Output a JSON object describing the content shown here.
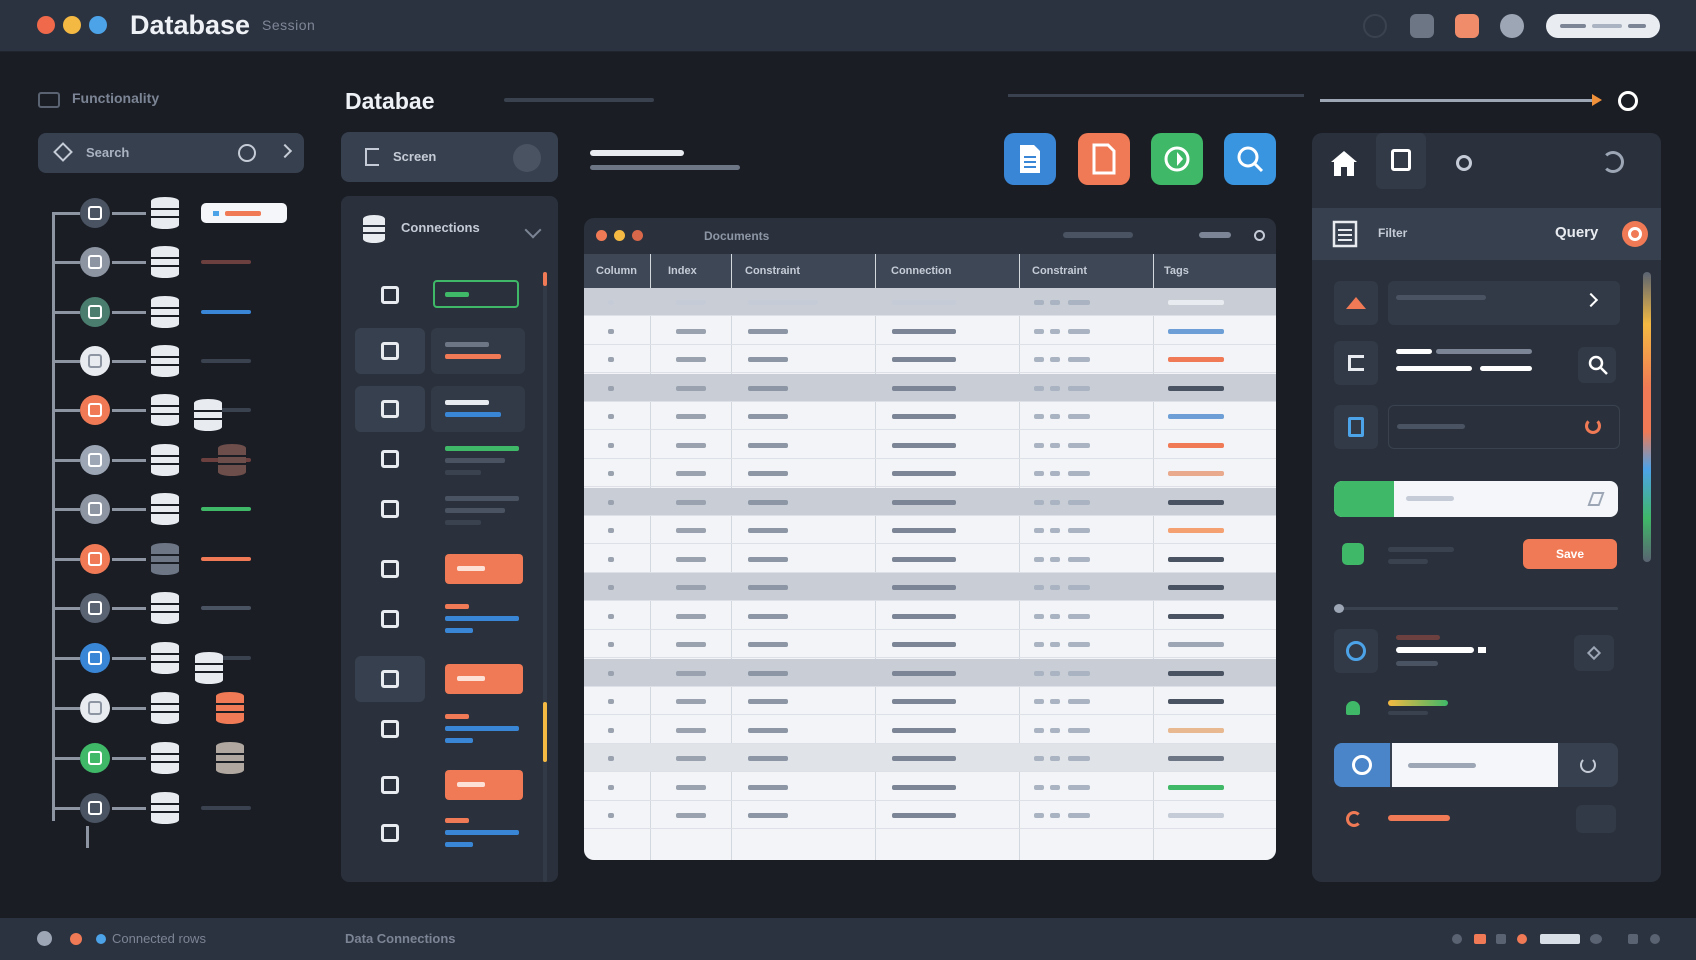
{
  "window": {
    "title": "Database",
    "subtitle": "Session",
    "traffic_lights": [
      "#f0694b",
      "#f4b942",
      "#4da3e8"
    ]
  },
  "sidebar": {
    "header": "Functionality",
    "search_label": "Search"
  },
  "main": {
    "title": "Databae",
    "connection_tab": "Screen",
    "list_header": "Connections"
  },
  "toolbar": {
    "buttons": [
      {
        "name": "document-icon",
        "color": "#3a86d6"
      },
      {
        "name": "file-icon",
        "color": "#f07a55"
      },
      {
        "name": "refresh-icon",
        "color": "#3fb868"
      },
      {
        "name": "search-icon",
        "color": "#3a95e0"
      }
    ]
  },
  "table": {
    "window_title": "Documents",
    "columns": [
      "Column",
      "Index",
      "Constraint",
      "Connection",
      "Constraint",
      "Tags"
    ],
    "row_count": 19
  },
  "right": {
    "header_label": "Filter",
    "query_label": "Query",
    "action_button": "Save"
  },
  "status": {
    "left_text": "Connected rows",
    "middle_text": "Data  Connections"
  },
  "colors": {
    "accent_orange": "#f07a55",
    "accent_green": "#3fb868",
    "accent_blue": "#3a86d6",
    "panel": "#2a313c"
  }
}
